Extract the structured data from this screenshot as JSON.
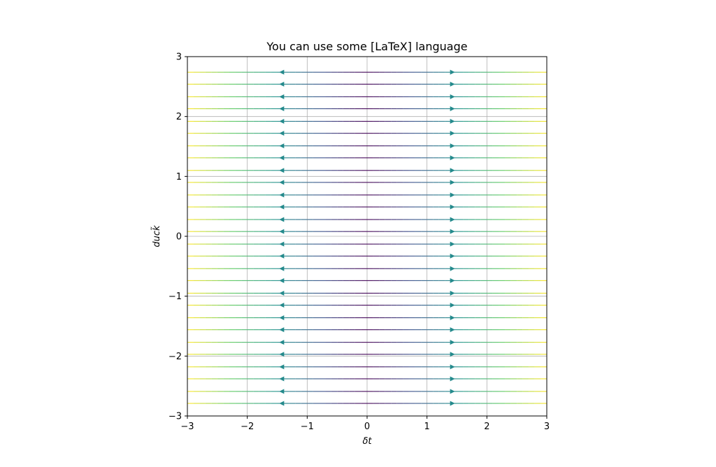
{
  "chart_data": {
    "type": "streamplot",
    "title": "You can use some [LaTeX] language",
    "xlabel": "δt",
    "ylabel": "duck̃",
    "xlim": [
      -3,
      3
    ],
    "ylim": [
      -3,
      3
    ],
    "grid": true,
    "x_ticks": [
      -3,
      -2,
      -1,
      0,
      1,
      2,
      3
    ],
    "y_ticks": [
      -3,
      -2,
      -1,
      0,
      1,
      2,
      3
    ],
    "x_tick_labels": [
      "−3",
      "−2",
      "−1",
      "0",
      "1",
      "2",
      "3"
    ],
    "y_tick_labels": [
      "−3",
      "−2",
      "−1",
      "0",
      "1",
      "2",
      "3"
    ],
    "field": {
      "u": "x",
      "v": "0",
      "direction": "horizontal, pointing away from x = 0"
    },
    "streamline_y": [
      -2.79,
      -2.59,
      -2.38,
      -2.18,
      -1.97,
      -1.77,
      -1.56,
      -1.36,
      -1.15,
      -0.95,
      -0.74,
      -0.54,
      -0.33,
      -0.13,
      0.08,
      0.28,
      0.49,
      0.69,
      0.9,
      1.1,
      1.31,
      1.51,
      1.72,
      1.92,
      2.13,
      2.33,
      2.54,
      2.74
    ],
    "arrow_x": [
      -1.42,
      1.42
    ],
    "colormap": "viridis",
    "color_by": "speed |x|",
    "colormap_stops": [
      "#440154",
      "#3b528b",
      "#21918c",
      "#5ec962",
      "#fde725"
    ]
  }
}
